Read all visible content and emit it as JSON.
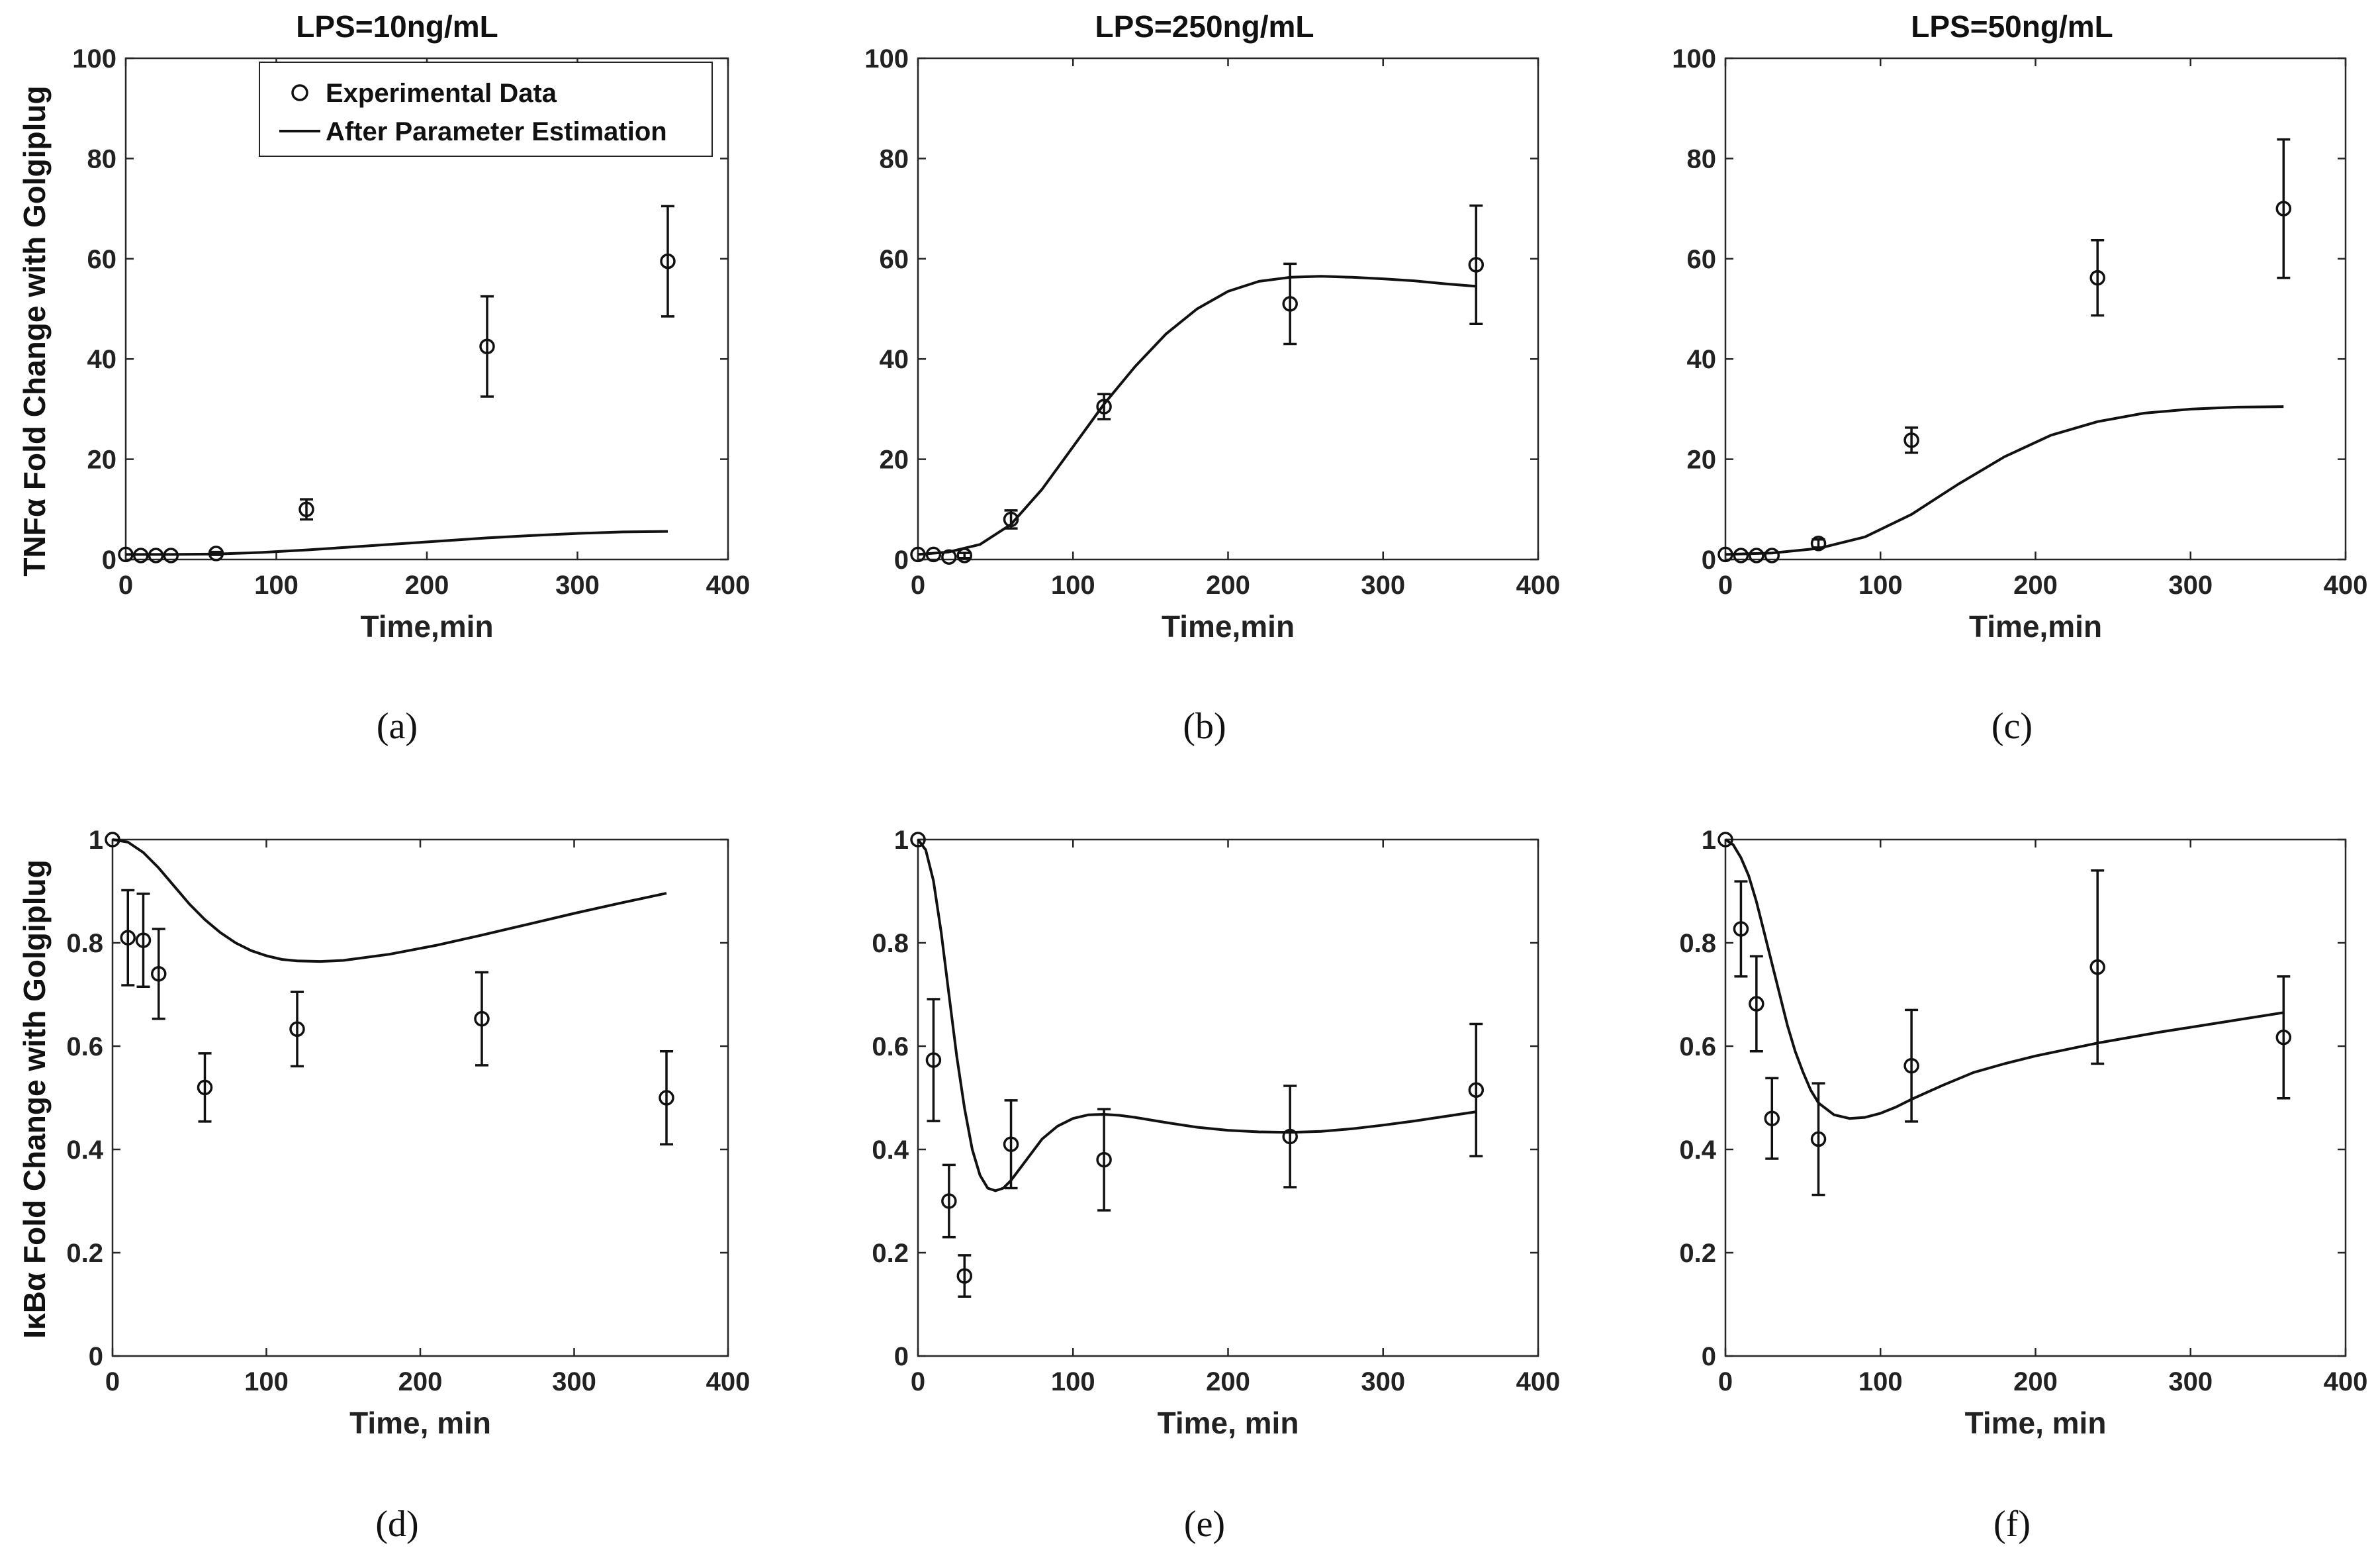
{
  "chart_data": [
    {
      "type": "scatter",
      "panel_label": "(a)",
      "title": "LPS=10ng/mL",
      "xlabel": "Time,min",
      "ylabel": "TNFα Fold Change with Golgiplug",
      "xlim": [
        0,
        400
      ],
      "ylim": [
        0,
        100
      ],
      "xticks": [
        "0",
        "100",
        "200",
        "300",
        "400"
      ],
      "yticks": [
        "0",
        "20",
        "40",
        "60",
        "80",
        "100"
      ],
      "legend": {
        "placement": "top-right",
        "entries": [
          "Experimental Data",
          "After Parameter Estimation"
        ]
      },
      "series": [
        {
          "name": "Experimental Data",
          "x": [
            0,
            10,
            20,
            30,
            60,
            120,
            240,
            360
          ],
          "y": [
            1.0,
            0.8,
            0.8,
            0.8,
            1.2,
            10.0,
            42.5,
            59.5
          ],
          "err": [
            0,
            0,
            0,
            0,
            0.3,
            2.0,
            10.0,
            11.0
          ]
        },
        {
          "name": "After Parameter Estimation",
          "x": [
            0,
            30,
            60,
            90,
            120,
            150,
            180,
            210,
            240,
            270,
            300,
            330,
            360
          ],
          "y": [
            1.0,
            1.0,
            1.1,
            1.4,
            1.9,
            2.5,
            3.1,
            3.7,
            4.3,
            4.8,
            5.2,
            5.5,
            5.6
          ]
        }
      ]
    },
    {
      "type": "scatter",
      "panel_label": "(b)",
      "title": "LPS=250ng/mL",
      "xlabel": "Time,min",
      "xlim": [
        0,
        400
      ],
      "ylim": [
        0,
        100
      ],
      "xticks": [
        "0",
        "100",
        "200",
        "300",
        "400"
      ],
      "yticks": [
        "0",
        "20",
        "40",
        "60",
        "80",
        "100"
      ],
      "series": [
        {
          "name": "Experimental Data",
          "x": [
            0,
            10,
            20,
            30,
            60,
            120,
            240,
            360
          ],
          "y": [
            1.0,
            1.0,
            0.5,
            0.8,
            8.0,
            30.5,
            51.0,
            58.8
          ],
          "err": [
            0,
            0,
            0,
            0.5,
            1.8,
            2.5,
            8.0,
            11.8
          ]
        },
        {
          "name": "After Parameter Estimation",
          "x": [
            0,
            20,
            40,
            60,
            80,
            100,
            120,
            140,
            160,
            180,
            200,
            220,
            240,
            260,
            280,
            300,
            320,
            340,
            360
          ],
          "y": [
            1.0,
            1.5,
            3.0,
            7.0,
            14.0,
            22.5,
            31.0,
            38.5,
            45.0,
            50.0,
            53.5,
            55.5,
            56.3,
            56.5,
            56.3,
            56.0,
            55.6,
            55.0,
            54.5
          ]
        }
      ]
    },
    {
      "type": "scatter",
      "panel_label": "(c)",
      "title": "LPS=50ng/mL",
      "xlabel": "Time,min",
      "xlim": [
        0,
        400
      ],
      "ylim": [
        0,
        100
      ],
      "xticks": [
        "0",
        "100",
        "200",
        "300",
        "400"
      ],
      "yticks": [
        "0",
        "20",
        "40",
        "60",
        "80",
        "100"
      ],
      "series": [
        {
          "name": "Experimental Data",
          "x": [
            0,
            10,
            20,
            30,
            60,
            120,
            240,
            360
          ],
          "y": [
            1.0,
            0.8,
            0.8,
            0.8,
            3.2,
            23.8,
            56.2,
            70.0
          ],
          "err": [
            0,
            0,
            0,
            0,
            0.8,
            2.5,
            7.5,
            13.8
          ]
        },
        {
          "name": "After Parameter Estimation",
          "x": [
            0,
            30,
            60,
            90,
            120,
            150,
            180,
            210,
            240,
            270,
            300,
            330,
            360
          ],
          "y": [
            1.0,
            1.3,
            2.2,
            4.5,
            9.0,
            15.0,
            20.5,
            24.8,
            27.5,
            29.2,
            30.0,
            30.4,
            30.5
          ]
        }
      ]
    },
    {
      "type": "scatter",
      "panel_label": "(d)",
      "xlabel": "Time, min",
      "ylabel": "IκBα Fold Change with Golgiplug",
      "xlim": [
        0,
        400
      ],
      "ylim": [
        0,
        1
      ],
      "xticks": [
        "0",
        "100",
        "200",
        "300",
        "400"
      ],
      "yticks": [
        "0",
        "0.2",
        "0.4",
        "0.6",
        "0.8",
        "1"
      ],
      "series": [
        {
          "name": "Experimental Data",
          "x": [
            0,
            10,
            20,
            30,
            60,
            120,
            240,
            360
          ],
          "y": [
            1.0,
            0.81,
            0.805,
            0.74,
            0.52,
            0.633,
            0.653,
            0.5
          ],
          "err": [
            0,
            0.092,
            0.09,
            0.087,
            0.066,
            0.072,
            0.09,
            0.09
          ]
        },
        {
          "name": "After Parameter Estimation",
          "x": [
            0,
            10,
            20,
            30,
            40,
            50,
            60,
            70,
            80,
            90,
            100,
            110,
            120,
            135,
            150,
            180,
            210,
            240,
            270,
            300,
            330,
            360
          ],
          "y": [
            1.0,
            0.995,
            0.975,
            0.945,
            0.91,
            0.875,
            0.845,
            0.82,
            0.8,
            0.785,
            0.775,
            0.768,
            0.765,
            0.764,
            0.766,
            0.778,
            0.795,
            0.815,
            0.836,
            0.857,
            0.877,
            0.896
          ]
        }
      ]
    },
    {
      "type": "scatter",
      "panel_label": "(e)",
      "xlabel": "Time, min",
      "xlim": [
        0,
        400
      ],
      "ylim": [
        0,
        1
      ],
      "xticks": [
        "0",
        "100",
        "200",
        "300",
        "400"
      ],
      "yticks": [
        "0",
        "0.2",
        "0.4",
        "0.6",
        "0.8",
        "1"
      ],
      "series": [
        {
          "name": "Experimental Data",
          "x": [
            0,
            10,
            20,
            30,
            60,
            120,
            240,
            360
          ],
          "y": [
            1.0,
            0.573,
            0.3,
            0.155,
            0.41,
            0.38,
            0.425,
            0.515
          ],
          "err": [
            0,
            0.118,
            0.07,
            0.04,
            0.085,
            0.098,
            0.098,
            0.128
          ]
        },
        {
          "name": "After Parameter Estimation",
          "x": [
            0,
            5,
            10,
            15,
            20,
            25,
            30,
            35,
            40,
            45,
            50,
            55,
            60,
            70,
            80,
            90,
            100,
            110,
            120,
            130,
            140,
            160,
            180,
            200,
            220,
            240,
            260,
            280,
            300,
            320,
            340,
            360
          ],
          "y": [
            1.0,
            0.98,
            0.92,
            0.82,
            0.7,
            0.58,
            0.48,
            0.4,
            0.35,
            0.325,
            0.32,
            0.325,
            0.34,
            0.38,
            0.42,
            0.445,
            0.46,
            0.467,
            0.468,
            0.466,
            0.462,
            0.452,
            0.443,
            0.437,
            0.434,
            0.433,
            0.435,
            0.44,
            0.447,
            0.455,
            0.464,
            0.473
          ]
        }
      ]
    },
    {
      "type": "scatter",
      "panel_label": "(f)",
      "xlabel": "Time, min",
      "xlim": [
        0,
        400
      ],
      "ylim": [
        0,
        1
      ],
      "xticks": [
        "0",
        "100",
        "200",
        "300",
        "400"
      ],
      "yticks": [
        "0",
        "0.2",
        "0.4",
        "0.6",
        "0.8",
        "1"
      ],
      "series": [
        {
          "name": "Experimental Data",
          "x": [
            0,
            10,
            20,
            30,
            60,
            120,
            240,
            360
          ],
          "y": [
            1.0,
            0.827,
            0.682,
            0.46,
            0.42,
            0.562,
            0.753,
            0.617
          ],
          "err": [
            0,
            0.092,
            0.092,
            0.078,
            0.108,
            0.108,
            0.187,
            0.118
          ]
        },
        {
          "name": "After Parameter Estimation",
          "x": [
            0,
            5,
            10,
            15,
            20,
            25,
            30,
            35,
            40,
            45,
            50,
            55,
            60,
            70,
            80,
            90,
            100,
            110,
            120,
            140,
            160,
            180,
            200,
            240,
            280,
            320,
            360
          ],
          "y": [
            1.0,
            0.99,
            0.965,
            0.93,
            0.88,
            0.82,
            0.76,
            0.7,
            0.64,
            0.59,
            0.55,
            0.515,
            0.49,
            0.467,
            0.46,
            0.462,
            0.47,
            0.482,
            0.497,
            0.524,
            0.549,
            0.566,
            0.581,
            0.606,
            0.627,
            0.646,
            0.665
          ]
        }
      ]
    }
  ]
}
